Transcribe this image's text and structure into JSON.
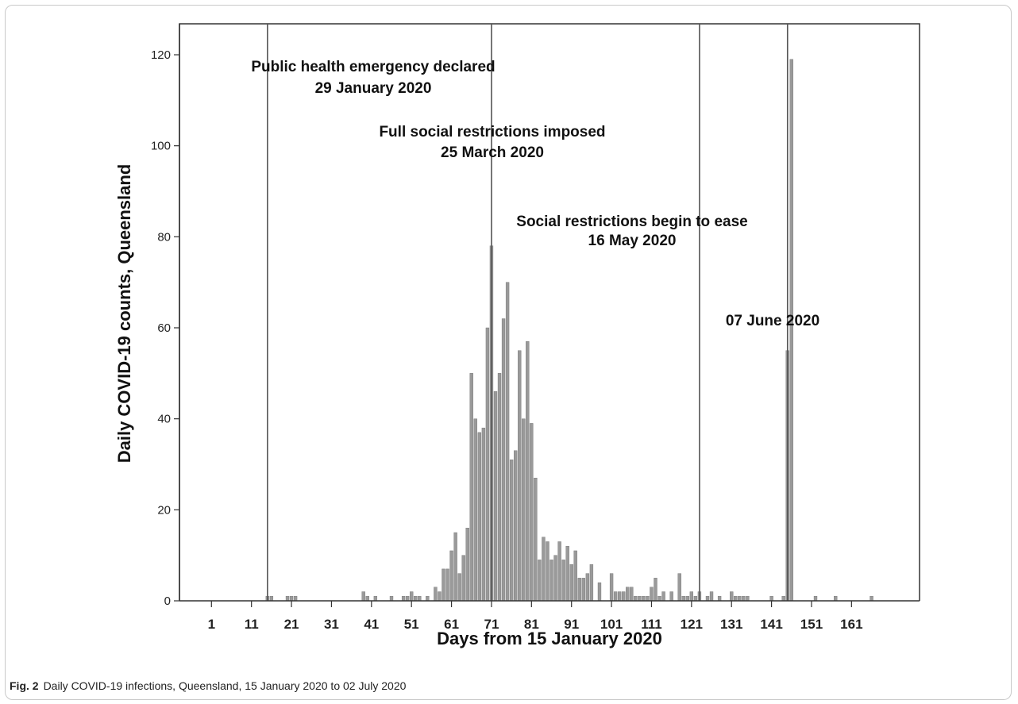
{
  "figure": {
    "caption_label": "Fig. 2",
    "caption_text": "Daily COVID-19 infections, Queensland, 15 January 2020 to 02 July 2020"
  },
  "chart_data": {
    "type": "bar",
    "xlabel": "Days from 15 January 2020",
    "ylabel": "Daily COVID-19 counts, Queensland",
    "xlim": [
      -7,
      178
    ],
    "ylim": [
      0,
      120
    ],
    "xticks": [
      1,
      11,
      21,
      31,
      41,
      51,
      61,
      71,
      81,
      91,
      101,
      111,
      121,
      131,
      141,
      151,
      161
    ],
    "yticks": [
      0,
      20,
      40,
      60,
      80,
      100,
      120
    ],
    "grid": false,
    "bar_color": "#9a9a9a",
    "series": [
      {
        "x": [
          15,
          16,
          20,
          21,
          22,
          39,
          40,
          42,
          46,
          49,
          50,
          51,
          52,
          53,
          55,
          57,
          58,
          59,
          60,
          61,
          62,
          63,
          64,
          65,
          66,
          67,
          68,
          69,
          70,
          71,
          72,
          73,
          74,
          75,
          76,
          77,
          78,
          79,
          80,
          81,
          82,
          83,
          84,
          85,
          86,
          87,
          88,
          89,
          90,
          91,
          92,
          93,
          94,
          95,
          96,
          98,
          101,
          102,
          103,
          104,
          105,
          106,
          107,
          108,
          109,
          110,
          111,
          112,
          113,
          114,
          116,
          118,
          119,
          120,
          121,
          122,
          123,
          125,
          126,
          128,
          131,
          132,
          133,
          134,
          135,
          141,
          144,
          145,
          146,
          152,
          157,
          166
        ],
        "values": [
          1,
          1,
          1,
          1,
          1,
          2,
          1,
          1,
          1,
          1,
          1,
          2,
          1,
          1,
          1,
          3,
          2,
          7,
          7,
          11,
          15,
          6,
          10,
          16,
          50,
          40,
          37,
          38,
          60,
          78,
          46,
          50,
          62,
          70,
          31,
          33,
          55,
          40,
          57,
          39,
          27,
          9,
          14,
          13,
          9,
          10,
          13,
          9,
          12,
          8,
          11,
          5,
          5,
          6,
          8,
          4,
          6,
          2,
          2,
          2,
          3,
          3,
          1,
          1,
          1,
          1,
          3,
          5,
          1,
          2,
          2,
          6,
          1,
          1,
          2,
          1,
          2,
          1,
          2,
          1,
          2,
          1,
          1,
          1,
          1,
          1,
          1,
          55,
          119,
          1,
          1,
          1
        ]
      }
    ],
    "events": [
      {
        "day": 15,
        "label_line1": "Public health emergency declared",
        "label_line2": "29 January 2020"
      },
      {
        "day": 71,
        "label_line1": "Full social restrictions imposed",
        "label_line2": "25 March 2020"
      },
      {
        "day": 123,
        "label_line1": "Social restrictions begin to ease",
        "label_line2": "16 May 2020"
      },
      {
        "day": 145,
        "label_line1": "07 June 2020",
        "label_line2": ""
      }
    ]
  }
}
